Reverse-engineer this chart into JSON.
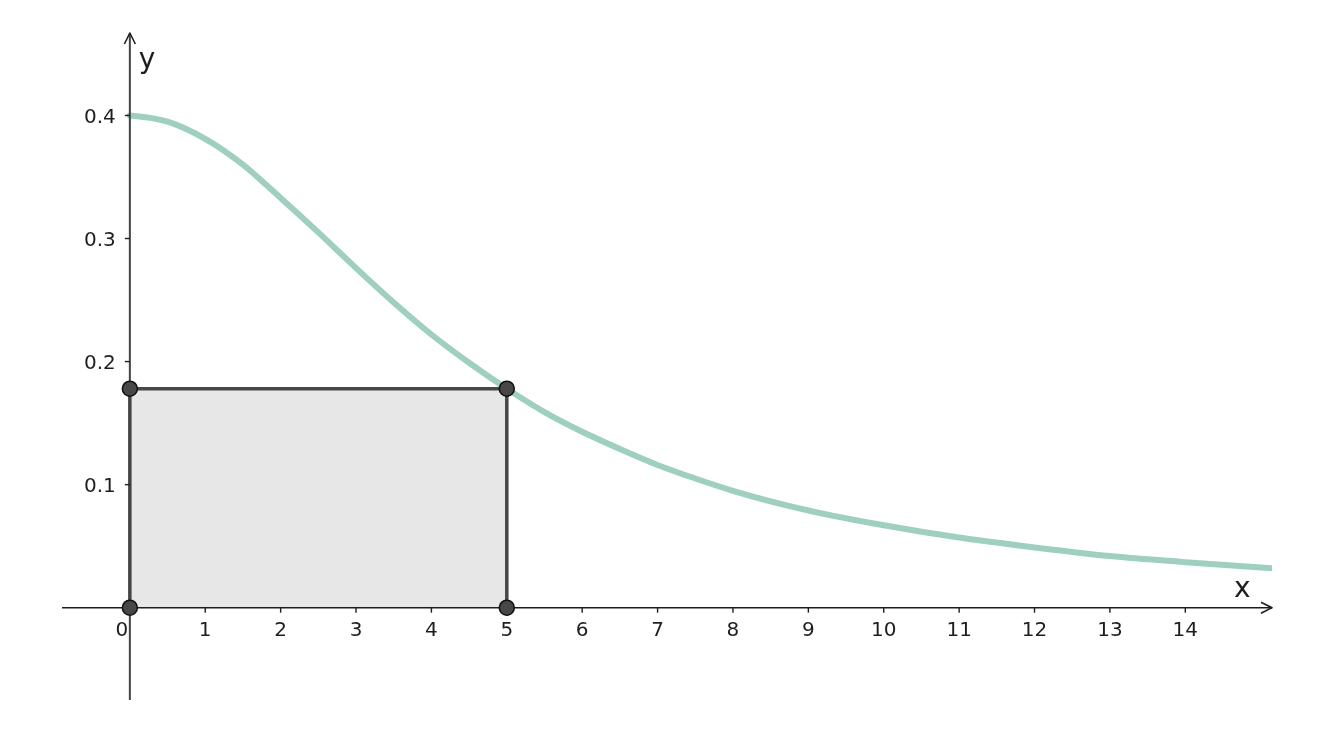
{
  "chart_data": {
    "type": "line",
    "xlabel": "x",
    "ylabel": "y",
    "xlim": [
      -0.9,
      15.15
    ],
    "ylim": [
      -0.075,
      0.467
    ],
    "xticks": [
      0,
      1,
      2,
      3,
      4,
      5,
      6,
      7,
      8,
      9,
      10,
      11,
      12,
      13,
      14
    ],
    "yticks": [
      0.1,
      0.2,
      0.3,
      0.4
    ],
    "series": [
      {
        "color": "#9ecfbf",
        "x": [
          0,
          0.5,
          1,
          1.5,
          2,
          2.5,
          3,
          3.5,
          4,
          4.5,
          5,
          5.5,
          6,
          6.5,
          7,
          7.5,
          8,
          9,
          10,
          11,
          12,
          13,
          14,
          15.15
        ],
        "values": [
          0.4,
          0.395,
          0.381,
          0.36,
          0.333,
          0.305,
          0.276,
          0.248,
          0.222,
          0.199,
          0.178,
          0.159,
          0.143,
          0.129,
          0.116,
          0.105,
          0.095,
          0.079,
          0.067,
          0.057,
          0.049,
          0.042,
          0.037,
          0.032
        ]
      },
      {
        "type": "area",
        "color": "#474747",
        "x": [
          0,
          0,
          5,
          5
        ],
        "values": [
          0,
          0.178,
          0.178,
          0
        ],
        "marker": "circle"
      }
    ]
  }
}
